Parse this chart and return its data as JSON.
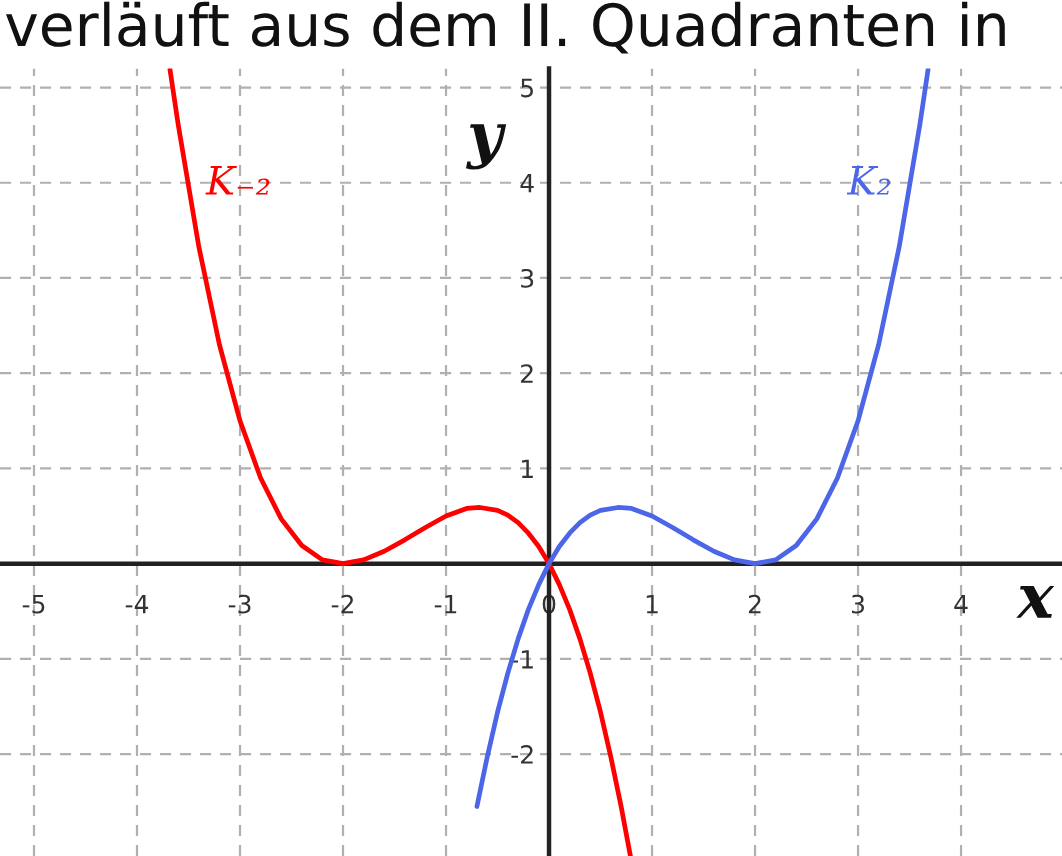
{
  "chart_data": {
    "type": "line",
    "title": "verläuft aus dem II. Quadranten in",
    "xlabel": "x",
    "ylabel": "y",
    "xlim": [
      -5.33,
      4.98
    ],
    "ylim": [
      -3.07,
      5.2
    ],
    "xticks": [
      -5,
      -4,
      -3,
      -2,
      -1,
      0,
      1,
      2,
      3,
      4
    ],
    "yticks": [
      -2,
      -1,
      1,
      2,
      3,
      4,
      5
    ],
    "grid": true,
    "series": [
      {
        "name": "K₋₂",
        "color": "#ff0000",
        "x": [
          -3.68,
          -3.6,
          -3.4,
          -3.2,
          -3.0,
          -2.8,
          -2.6,
          -2.4,
          -2.2,
          -2.0,
          -1.8,
          -1.6,
          -1.4,
          -1.2,
          -1.0,
          -0.8,
          -0.67,
          -0.5,
          -0.4,
          -0.3,
          -0.2,
          -0.1,
          0,
          0.1,
          0.2,
          0.3,
          0.4,
          0.5,
          0.6,
          0.7,
          0.79
        ],
        "values": [
          5.19,
          4.61,
          3.33,
          2.3,
          1.5,
          0.9,
          0.47,
          0.19,
          0.04,
          0,
          0.04,
          0.13,
          0.25,
          0.38,
          0.5,
          0.58,
          0.59,
          0.56,
          0.51,
          0.43,
          0.32,
          0.18,
          0,
          -0.22,
          -0.48,
          -0.79,
          -1.15,
          -1.56,
          -2.03,
          -2.55,
          -3.07
        ]
      },
      {
        "name": "K₂",
        "color": "#4d66e8",
        "x": [
          -0.7,
          -0.6,
          -0.5,
          -0.4,
          -0.3,
          -0.2,
          -0.1,
          0,
          0.1,
          0.2,
          0.3,
          0.4,
          0.5,
          0.67,
          0.8,
          1.0,
          1.2,
          1.4,
          1.6,
          1.8,
          2.0,
          2.2,
          2.4,
          2.6,
          2.8,
          3.0,
          3.2,
          3.4,
          3.6,
          3.68
        ],
        "values": [
          -2.55,
          -2.03,
          -1.56,
          -1.15,
          -0.79,
          -0.48,
          -0.22,
          0,
          0.18,
          0.32,
          0.43,
          0.51,
          0.56,
          0.59,
          0.58,
          0.5,
          0.38,
          0.25,
          0.13,
          0.04,
          0,
          0.04,
          0.19,
          0.47,
          0.9,
          1.5,
          2.3,
          3.33,
          4.61,
          5.19
        ]
      }
    ]
  }
}
